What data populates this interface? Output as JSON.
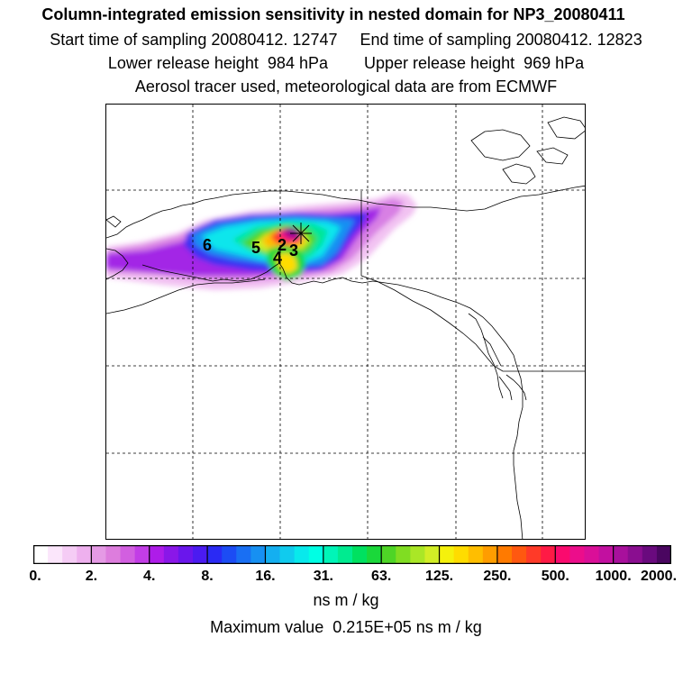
{
  "header": {
    "title": "Column-integrated emission sensitivity in nested domain for NP3_20080411",
    "sampling_line": "Start time of sampling 20080412. 12747     End time of sampling 20080412. 12823",
    "release_line": "Lower release height  984 hPa        Upper release height  969 hPa",
    "tracer_line": "Aerosol tracer used, meteorological data are from ECMWF"
  },
  "map": {
    "labels": [
      "6",
      "5",
      "2",
      "3",
      "4"
    ],
    "receptor_marker": "star-icon"
  },
  "colorbar": {
    "ticks": [
      "0.",
      "2.",
      "4.",
      "8.",
      "16.",
      "31.",
      "63.",
      "125.",
      "250.",
      "500.",
      "1000.",
      "2000."
    ],
    "colors": [
      "#ffffff",
      "#fbe6fb",
      "#f5ccf5",
      "#eeb0ee",
      "#e59ae5",
      "#dd7ddd",
      "#d25fe0",
      "#c23de6",
      "#ae1ce9",
      "#8a17e8",
      "#6a16ec",
      "#4b1bf1",
      "#2a2af4",
      "#1c4cf4",
      "#196ff3",
      "#1790f2",
      "#14aff0",
      "#10cbee",
      "#08e9ec",
      "#00ffe4",
      "#00f5b8",
      "#00eb90",
      "#00e160",
      "#1ad83a",
      "#4ed526",
      "#80dd22",
      "#aae726",
      "#d2ee26",
      "#f5f10c",
      "#ffdc00",
      "#ffbe00",
      "#ff9d00",
      "#ff7a00",
      "#ff5810",
      "#ff3a28",
      "#ff1a45",
      "#fa0a6e",
      "#ec0d8b",
      "#da0f98",
      "#c210a0",
      "#a8109c",
      "#8a0e90",
      "#6a0a7e",
      "#4a0660"
    ],
    "units": "ns m / kg",
    "max_value": "Maximum value  0.215E+05 ns m / kg"
  }
}
